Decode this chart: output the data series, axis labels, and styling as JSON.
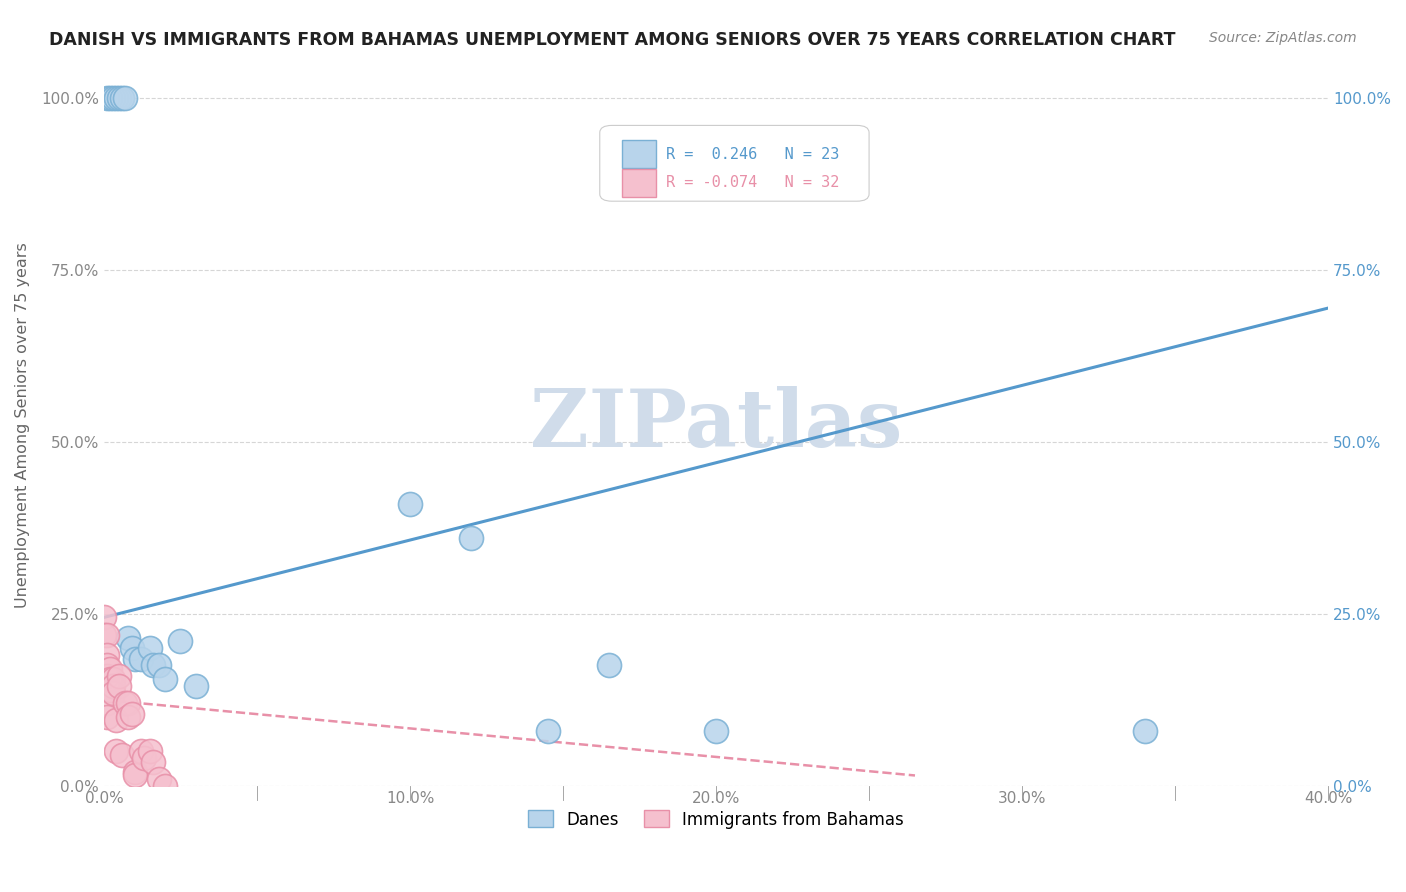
{
  "title": "DANISH VS IMMIGRANTS FROM BAHAMAS UNEMPLOYMENT AMONG SENIORS OVER 75 YEARS CORRELATION CHART",
  "source": "Source: ZipAtlas.com",
  "ylabel": "Unemployment Among Seniors over 75 years",
  "xlim": [
    0.0,
    0.4
  ],
  "ylim": [
    0.0,
    1.05
  ],
  "xticks": [
    0.0,
    0.05,
    0.1,
    0.15,
    0.2,
    0.25,
    0.3,
    0.35,
    0.4
  ],
  "xticklabels": [
    "0.0%",
    "",
    "10.0%",
    "",
    "20.0%",
    "",
    "30.0%",
    "",
    "40.0%"
  ],
  "yticks": [
    0.0,
    0.25,
    0.5,
    0.75,
    1.0
  ],
  "yticklabels": [
    "0.0%",
    "25.0%",
    "50.0%",
    "75.0%",
    "100.0%"
  ],
  "danes_R": 0.246,
  "danes_N": 23,
  "immigrants_R": -0.074,
  "immigrants_N": 32,
  "legend_label_danes": "Danes",
  "legend_label_immigrants": "Immigrants from Bahamas",
  "danes_color": "#b8d4eb",
  "danes_edge_color": "#7ab0d4",
  "danes_line_color": "#5599cc",
  "immigrants_color": "#f5c0ce",
  "immigrants_edge_color": "#e890a8",
  "immigrants_line_color": "#e890a8",
  "watermark": "ZIPatlas",
  "watermark_color": "#d0dcea",
  "danes_x": [
    0.001,
    0.002,
    0.003,
    0.004,
    0.005,
    0.006,
    0.007,
    0.008,
    0.009,
    0.01,
    0.012,
    0.015,
    0.016,
    0.018,
    0.02,
    0.025,
    0.03,
    0.1,
    0.12,
    0.145,
    0.165,
    0.2,
    0.34
  ],
  "danes_y": [
    1.0,
    1.0,
    1.0,
    1.0,
    1.0,
    1.0,
    1.0,
    0.215,
    0.2,
    0.185,
    0.185,
    0.2,
    0.175,
    0.175,
    0.155,
    0.21,
    0.145,
    0.41,
    0.36,
    0.08,
    0.175,
    0.08,
    0.08
  ],
  "immigrants_x": [
    0.0,
    0.0,
    0.001,
    0.001,
    0.001,
    0.001,
    0.001,
    0.001,
    0.001,
    0.002,
    0.002,
    0.002,
    0.003,
    0.003,
    0.003,
    0.004,
    0.004,
    0.005,
    0.005,
    0.006,
    0.007,
    0.008,
    0.008,
    0.009,
    0.01,
    0.01,
    0.012,
    0.013,
    0.015,
    0.016,
    0.018,
    0.02
  ],
  "immigrants_y": [
    0.245,
    0.22,
    0.22,
    0.19,
    0.175,
    0.16,
    0.145,
    0.12,
    0.1,
    0.17,
    0.155,
    0.14,
    0.155,
    0.145,
    0.135,
    0.095,
    0.05,
    0.16,
    0.145,
    0.045,
    0.12,
    0.12,
    0.1,
    0.105,
    0.02,
    0.015,
    0.05,
    0.04,
    0.05,
    0.035,
    0.01,
    0.0
  ],
  "trend_danes_x0": 0.0,
  "trend_danes_x1": 0.4,
  "trend_danes_y0": 0.245,
  "trend_danes_y1": 0.695,
  "trend_imm_x0": 0.0,
  "trend_imm_x1": 0.265,
  "trend_imm_y0": 0.125,
  "trend_imm_y1": 0.015
}
